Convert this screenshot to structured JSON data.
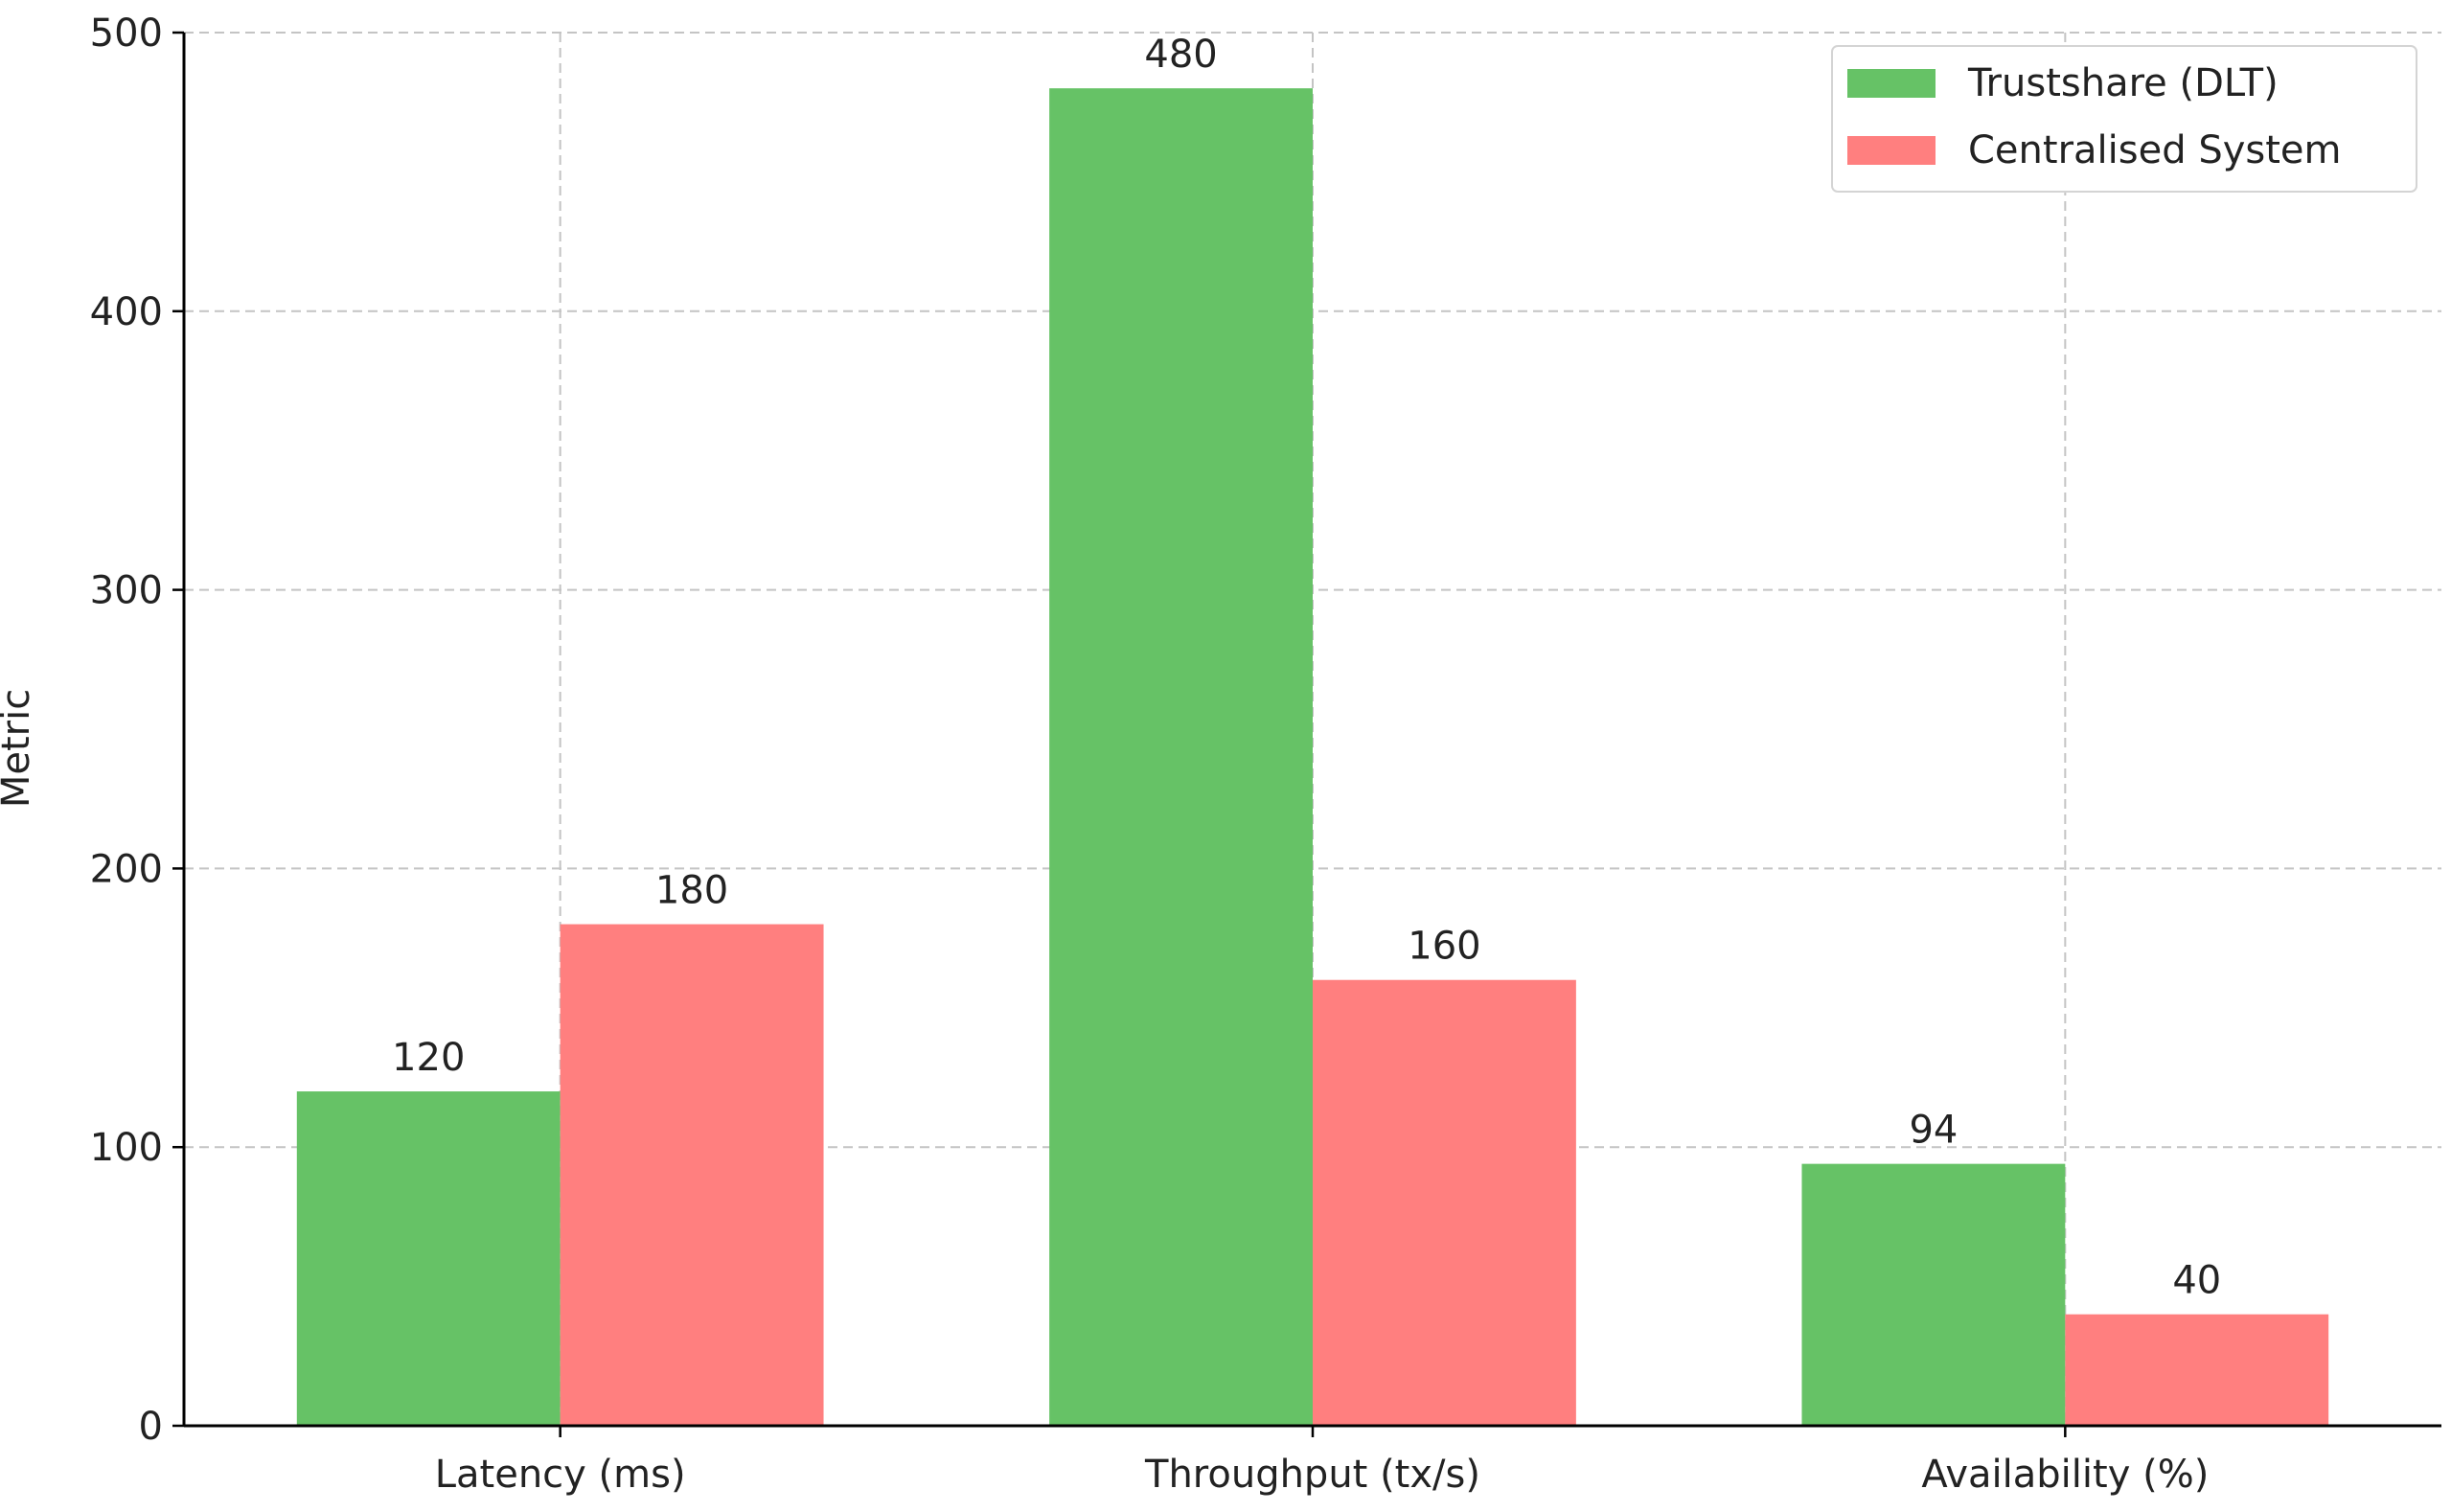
{
  "chart_data": {
    "type": "bar",
    "title": "",
    "xlabel": "",
    "ylabel": "Metric",
    "categories": [
      "Latency (ms)",
      "Throughput (tx/s)",
      "Availability (%)"
    ],
    "series": [
      {
        "name": "Trustshare (DLT)",
        "values": [
          120,
          480,
          94
        ],
        "labels": [
          "120",
          "480",
          "94"
        ],
        "color": "#66c266"
      },
      {
        "name": "Centralised System",
        "values": [
          180,
          160,
          40
        ],
        "labels": [
          "180",
          "160",
          "40"
        ],
        "color": "#ff7f7f"
      }
    ],
    "ylim": [
      0,
      500
    ],
    "yticks": [
      0,
      100,
      200,
      300,
      400,
      500
    ],
    "grid": true,
    "legend_position": "top-right"
  }
}
